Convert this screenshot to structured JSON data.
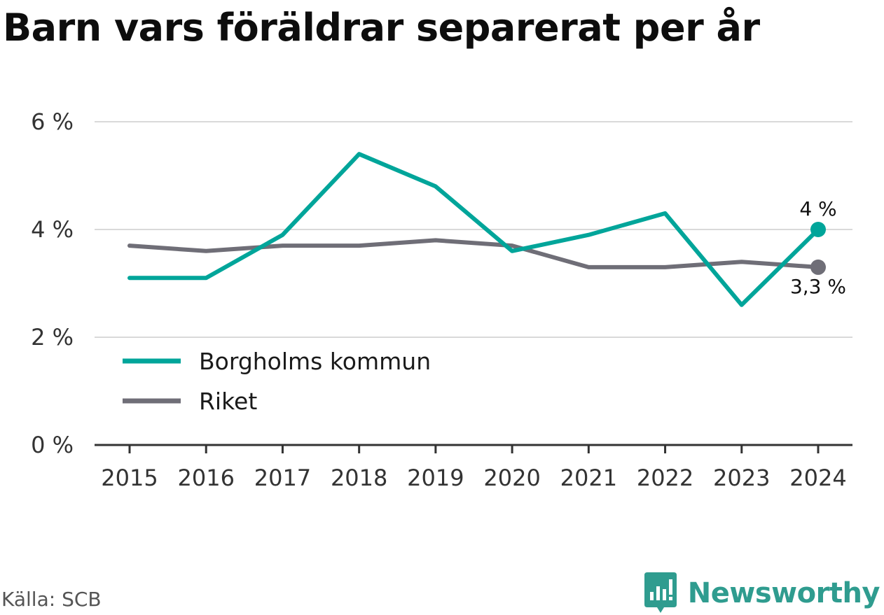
{
  "title": "Barn vars föräldrar separerat per år",
  "source": "Källa: SCB",
  "brand": "Newsworthy",
  "colors": {
    "series_a": "#00a59a",
    "series_b": "#6f6e77",
    "grid": "#d9d9d9",
    "axis": "#333333",
    "brand": "#2f9c8f"
  },
  "chart_data": {
    "type": "line",
    "x": [
      "2015",
      "2016",
      "2017",
      "2018",
      "2019",
      "2020",
      "2021",
      "2022",
      "2023",
      "2024"
    ],
    "ylim": [
      0,
      6
    ],
    "yticks": [
      {
        "value": 0,
        "label": "0 %"
      },
      {
        "value": 2,
        "label": "2 %"
      },
      {
        "value": 4,
        "label": "4 %"
      },
      {
        "value": 6,
        "label": "6 %"
      }
    ],
    "grid": true,
    "legend": "bottom-left",
    "series": [
      {
        "name": "Borgholms kommun",
        "color": "#00a59a",
        "values": [
          3.1,
          3.1,
          3.9,
          5.4,
          4.8,
          3.6,
          3.9,
          4.3,
          2.6,
          4.0
        ],
        "end_label": "4 %"
      },
      {
        "name": "Riket",
        "color": "#6f6e77",
        "values": [
          3.7,
          3.6,
          3.7,
          3.7,
          3.8,
          3.7,
          3.3,
          3.3,
          3.4,
          3.3
        ],
        "end_label": "3,3 %"
      }
    ]
  }
}
